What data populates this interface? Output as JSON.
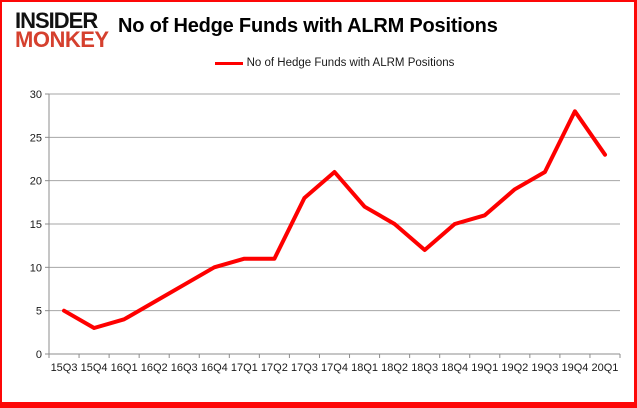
{
  "branding": {
    "line1": "INSIDER",
    "line2": "MONKEY",
    "monkey_color": "#d5402e",
    "insider_color": "#111111"
  },
  "header": {
    "title": "No of Hedge Funds with ALRM Positions"
  },
  "legend": {
    "label": "No of Hedge Funds with ALRM Positions",
    "line_color": "#fe0000",
    "position": "top-center"
  },
  "chart_data": {
    "type": "line",
    "title": "No of Hedge Funds with ALRM Positions",
    "categories": [
      "15Q3",
      "15Q4",
      "16Q1",
      "16Q2",
      "16Q3",
      "16Q4",
      "17Q1",
      "17Q2",
      "17Q3",
      "17Q4",
      "18Q1",
      "18Q2",
      "18Q3",
      "18Q4",
      "19Q1",
      "19Q2",
      "19Q3",
      "19Q4",
      "20Q1"
    ],
    "series": [
      {
        "name": "No of Hedge Funds with ALRM Positions",
        "values": [
          5,
          3,
          4,
          6,
          8,
          10,
          11,
          11,
          18,
          21,
          17,
          15,
          12,
          15,
          16,
          19,
          21,
          28,
          23
        ]
      }
    ],
    "xlabel": "",
    "ylabel": "",
    "ylim": [
      0,
      30
    ],
    "yticks": [
      0,
      5,
      10,
      15,
      20,
      25,
      30
    ],
    "grid": true,
    "legend_position": "top",
    "line_color": "#fe0000",
    "line_width": 4,
    "gridline_color": "#a6a6a6",
    "axis_color": "#8c8c8c",
    "tick_label_color": "#1a1a1a",
    "tick_font_size": 11
  },
  "frame": {
    "border_color": "#fd0808",
    "background": "#ffffff"
  }
}
